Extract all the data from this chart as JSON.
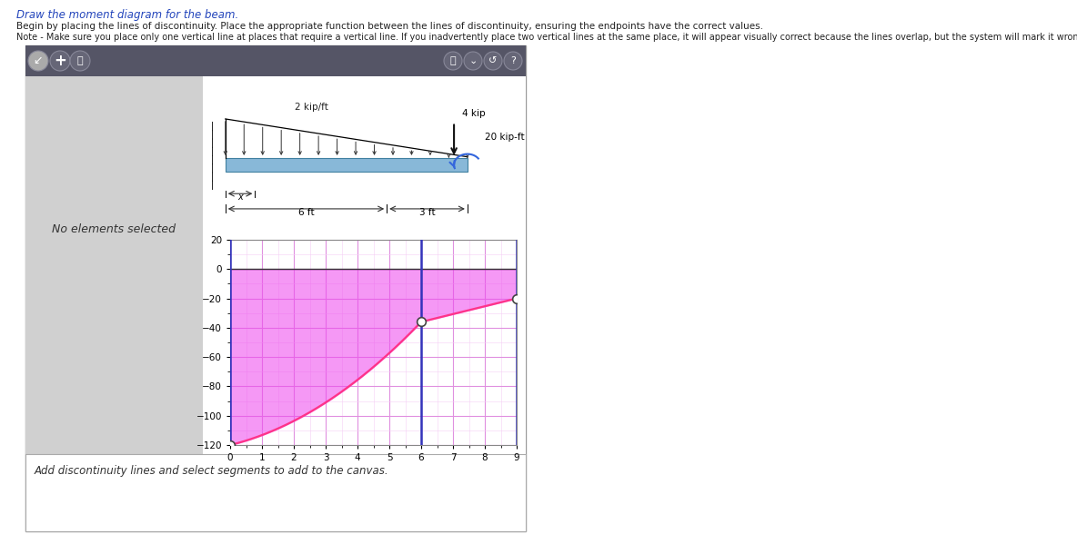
{
  "title_text": "Draw the moment diagram for the beam.",
  "instructions_line1": "Begin by placing the lines of discontinuity. Place the appropriate function between the lines of discontinuity, ensuring the endpoints have the correct values.",
  "instructions_line2": "Note - Make sure you place only one vertical line at places that require a vertical line. If you inadvertently place two vertical lines at the same place, it will appear visually correct because the lines overlap, but the system will mark it wrong.",
  "bg_color": "#ffffff",
  "panel_border_color": "#aaaaaa",
  "toolbar_bg": "#555566",
  "sidebar_bg": "#d8d8d8",
  "content_bg": "#ffffff",
  "plot_bg": "#ffffff",
  "grid_major_color": "#e090e0",
  "grid_minor_color": "#f5d0f5",
  "fill_color": "#ee44ee",
  "fill_alpha": 0.55,
  "curve_color": "#ff3388",
  "vline_color": "#3333bb",
  "zero_line_color": "#333333",
  "x_min": 0,
  "x_max": 9,
  "y_min": -120,
  "y_max": 20,
  "x_ticks": [
    0,
    1,
    2,
    3,
    4,
    5,
    6,
    7,
    8,
    9
  ],
  "y_ticks": [
    -120,
    -100,
    -80,
    -60,
    -40,
    -20,
    0,
    20
  ],
  "vlines_x": [
    0,
    6,
    9
  ],
  "M0": -120,
  "M6": -36,
  "M9": -20,
  "beam_load": "2 kip/ft",
  "beam_point": "4 kip",
  "beam_moment": "20 kip-ft",
  "beam_dim1": "6 ft",
  "beam_dim2": "3 ft",
  "status_text": "No elements selected",
  "bottom_text": "Add discontinuity lines and select segments to add to the canvas.",
  "figsize": [
    11.84,
    6.1
  ],
  "dpi": 100
}
